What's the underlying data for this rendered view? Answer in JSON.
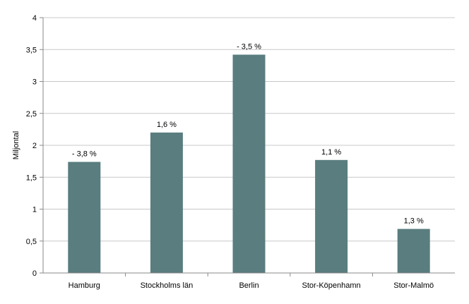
{
  "chart_data": {
    "type": "bar",
    "categories": [
      "Hamburg",
      "Stockholms län",
      "Berlin",
      "Stor-Köpenhamn",
      "Stor-Malmö"
    ],
    "values": [
      1.74,
      2.2,
      3.42,
      1.77,
      0.69
    ],
    "data_labels": [
      "- 3,8 %",
      "1,6 %",
      "- 3,5 %",
      "1,1 %",
      "1,3 %"
    ],
    "ylabel": "Miljontal",
    "xlabel": "",
    "ylim": [
      0,
      4
    ],
    "yticks": [
      "0",
      "0,5",
      "1",
      "1,5",
      "2",
      "2,5",
      "3",
      "3,5",
      "4"
    ],
    "grid": true,
    "legend": "none",
    "bar_color": "#5a7d7f",
    "grid_color": "#c8c8c8",
    "axis_color": "#888888"
  }
}
